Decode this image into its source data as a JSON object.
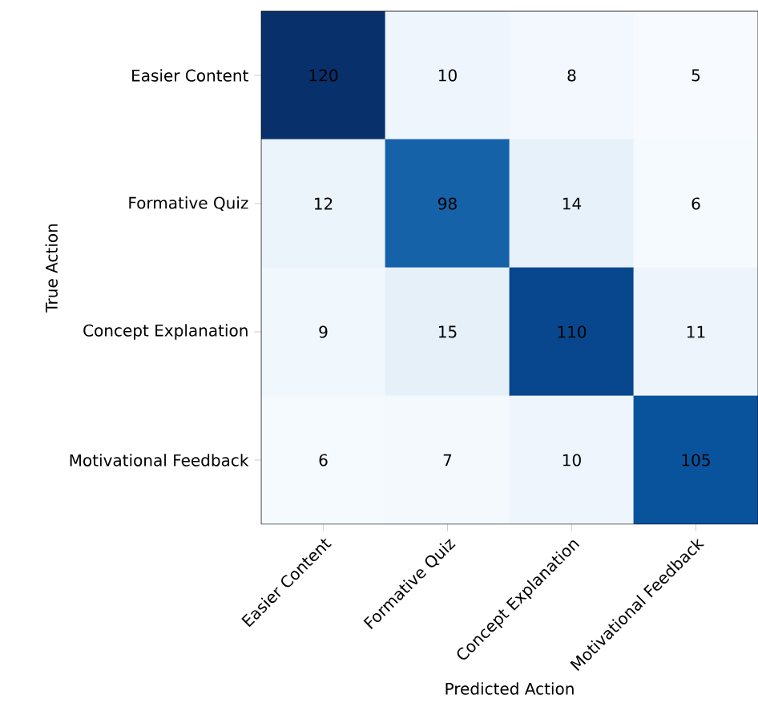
{
  "chart_data": {
    "type": "heatmap",
    "categories": [
      "Easier Content",
      "Formative Quiz",
      "Concept Explanation",
      "Motivational Feedback"
    ],
    "y_categories": [
      "Easier Content",
      "Formative Quiz",
      "Concept Explanation",
      "Motivational Feedback"
    ],
    "cells": [
      [
        120,
        10,
        8,
        5
      ],
      [
        12,
        98,
        14,
        6
      ],
      [
        9,
        15,
        110,
        11
      ],
      [
        6,
        7,
        10,
        105
      ]
    ],
    "data_labels": true,
    "xlabel": "Predicted Action",
    "ylabel": "True Action"
  }
}
